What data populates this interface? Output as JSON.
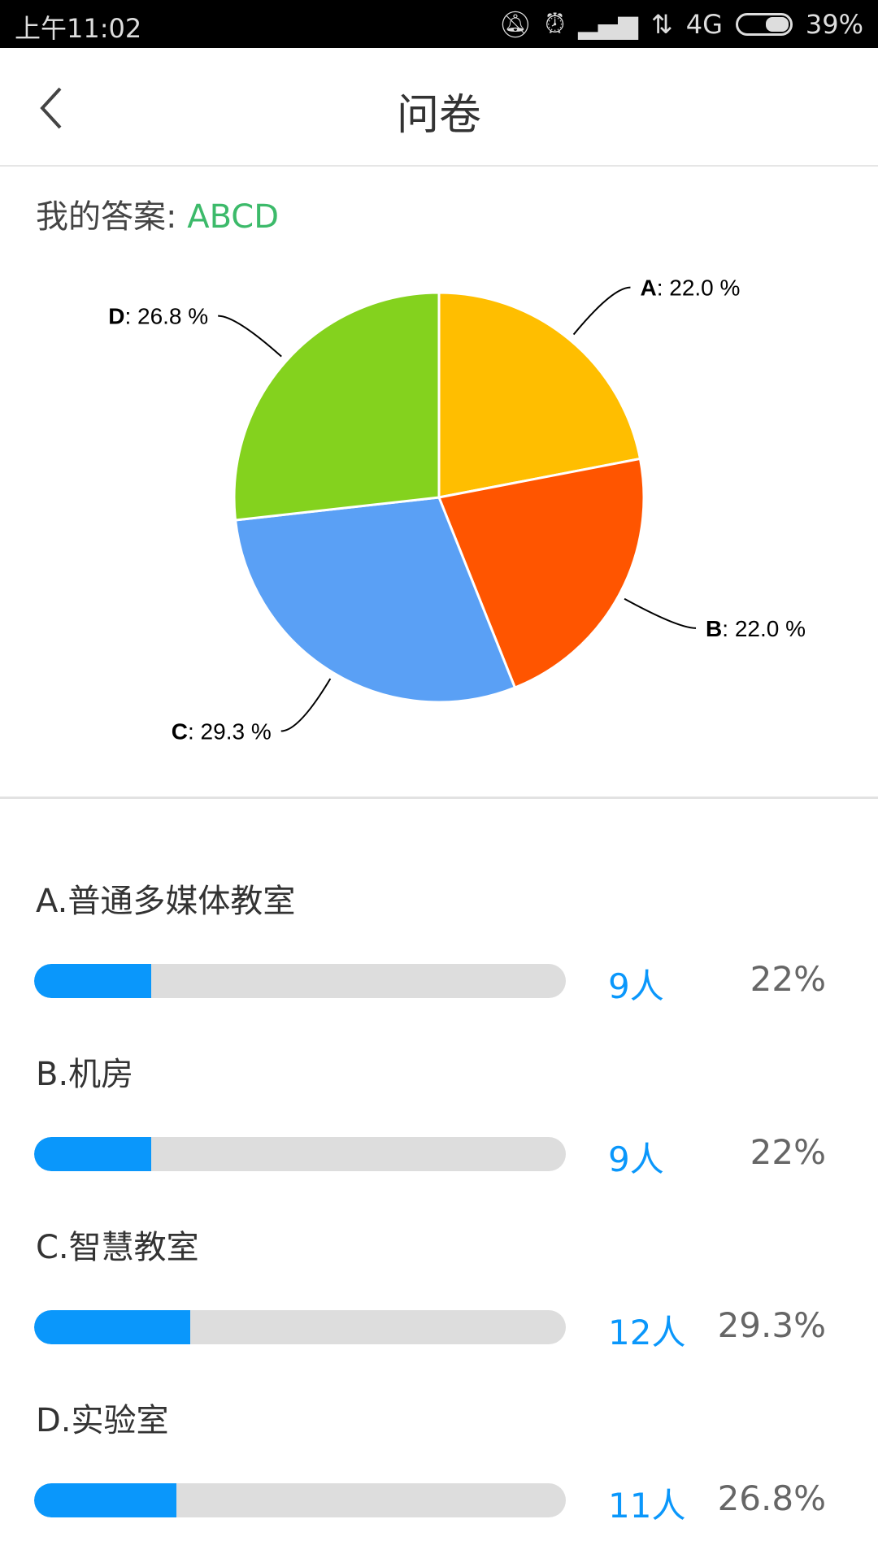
{
  "status_bar": {
    "time": "上午11:02",
    "network": "4G",
    "battery": "39%",
    "battery_level": 0.39,
    "icons": [
      "mute-icon",
      "alarm-icon",
      "signal-icon",
      "data-icon",
      "battery-icon"
    ]
  },
  "header": {
    "title": "问卷",
    "back_icon": "chevron-left-icon"
  },
  "answer": {
    "label": "我的答案: ",
    "value": "ABCD"
  },
  "chart_data": {
    "type": "pie",
    "categories": [
      "A",
      "B",
      "C",
      "D"
    ],
    "values": [
      22.0,
      22.0,
      29.3,
      26.8
    ],
    "labels": [
      ": 22.0 %",
      ": 22.0 %",
      ": 29.3 %",
      ": 26.8 %"
    ],
    "colors": [
      "#FFBE00",
      "#FF5500",
      "#5AA0F5",
      "#84D21E"
    ]
  },
  "options": [
    {
      "label": "A.普通多媒体教室",
      "count": "9人",
      "percent": "22%",
      "fraction": 0.22
    },
    {
      "label": "B.机房",
      "count": "9人",
      "percent": "22%",
      "fraction": 0.22
    },
    {
      "label": "C.智慧教室",
      "count": "12人",
      "percent": "29.3%",
      "fraction": 0.293
    },
    {
      "label": "D.实验室",
      "count": "11人",
      "percent": "26.8%",
      "fraction": 0.268
    }
  ]
}
